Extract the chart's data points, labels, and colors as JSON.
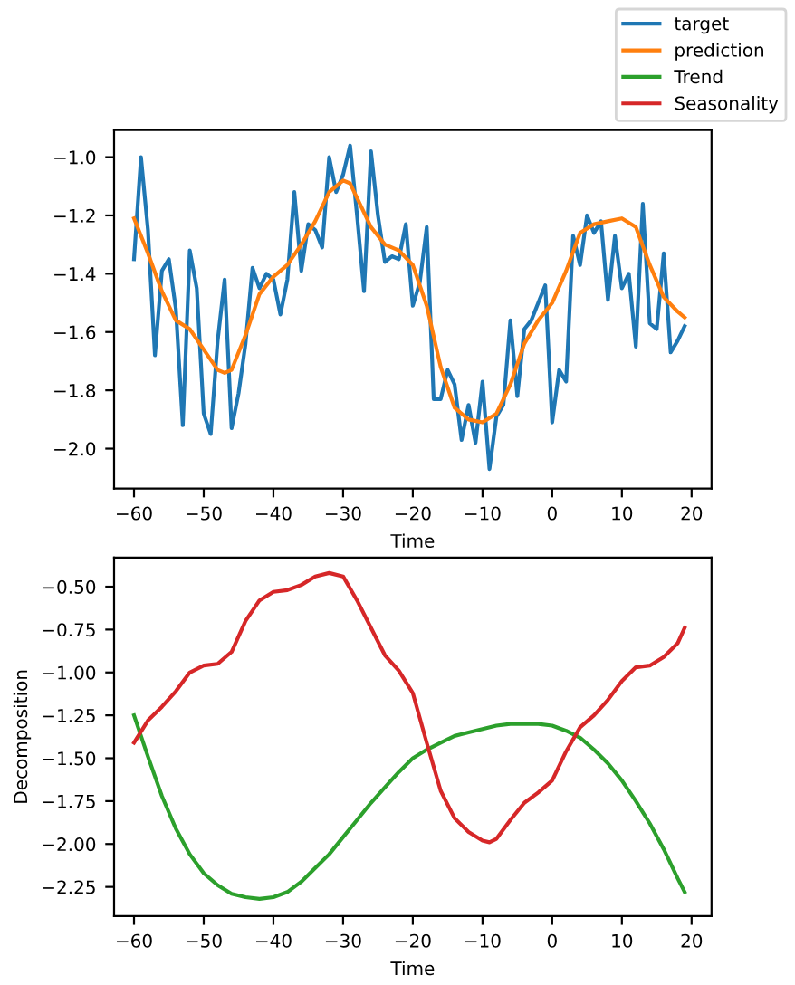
{
  "chart_data": [
    {
      "type": "line",
      "xlabel": "Time",
      "legend": "top right",
      "grid": false,
      "xlim": [
        -62.86,
        22.86
      ],
      "ylim": [
        -2.137,
        -0.907
      ],
      "xticks": [
        {
          "value": -60,
          "label": "−60"
        },
        {
          "value": -50,
          "label": "−50"
        },
        {
          "value": -40,
          "label": "−40"
        },
        {
          "value": -30,
          "label": "−30"
        },
        {
          "value": -20,
          "label": "−20"
        },
        {
          "value": -10,
          "label": "−10"
        },
        0,
        10,
        20
      ],
      "yticks": [
        {
          "value": -2.0,
          "label": "−2.0"
        },
        {
          "value": -1.8,
          "label": "−1.8"
        },
        {
          "value": -1.6,
          "label": "−1.6"
        },
        {
          "value": -1.4,
          "label": "−1.4"
        },
        {
          "value": -1.2,
          "label": "−1.2"
        },
        {
          "value": -1.0,
          "label": "−1.0"
        }
      ],
      "series": [
        {
          "name": "target",
          "color": "#1f77b4",
          "x": [
            -60,
            -59,
            -58,
            -57,
            -56,
            -55,
            -54,
            -53,
            -52,
            -51,
            -50,
            -49,
            -48,
            -47,
            -46,
            -45,
            -44,
            -43,
            -42,
            -41,
            -40,
            -39,
            -38,
            -37,
            -36,
            -35,
            -34,
            -33,
            -32,
            -31,
            -30,
            -29,
            -28,
            -27,
            -26,
            -25,
            -24,
            -23,
            -22,
            -21,
            -20,
            -19,
            -18,
            -17,
            -16,
            -15,
            -14,
            -13,
            -12,
            -11,
            -10,
            -9,
            -8,
            -7,
            -6,
            -5,
            -4,
            -3,
            -2,
            -1,
            0,
            1,
            2,
            3,
            4,
            5,
            6,
            7,
            8,
            9,
            10,
            11,
            12,
            13,
            14,
            15,
            16,
            17,
            18,
            19
          ],
          "values": [
            -1.35,
            -1.0,
            -1.25,
            -1.68,
            -1.39,
            -1.35,
            -1.52,
            -1.92,
            -1.32,
            -1.45,
            -1.88,
            -1.95,
            -1.63,
            -1.42,
            -1.93,
            -1.81,
            -1.64,
            -1.38,
            -1.45,
            -1.4,
            -1.42,
            -1.54,
            -1.42,
            -1.12,
            -1.39,
            -1.23,
            -1.25,
            -1.31,
            -1.0,
            -1.12,
            -1.06,
            -0.96,
            -1.2,
            -1.46,
            -0.98,
            -1.2,
            -1.36,
            -1.34,
            -1.35,
            -1.23,
            -1.51,
            -1.43,
            -1.24,
            -1.83,
            -1.83,
            -1.73,
            -1.78,
            -1.97,
            -1.85,
            -1.98,
            -1.77,
            -2.07,
            -1.89,
            -1.85,
            -1.56,
            -1.82,
            -1.59,
            -1.56,
            -1.5,
            -1.44,
            -1.91,
            -1.73,
            -1.77,
            -1.27,
            -1.37,
            -1.2,
            -1.26,
            -1.22,
            -1.49,
            -1.27,
            -1.45,
            -1.4,
            -1.65,
            -1.16,
            -1.57,
            -1.59,
            -1.33,
            -1.67,
            -1.63,
            -1.58
          ]
        },
        {
          "name": "prediction",
          "color": "#ff7f0e",
          "x": [
            -60,
            -58,
            -56,
            -54,
            -52,
            -50,
            -48,
            -47,
            -46,
            -44,
            -42,
            -40,
            -38,
            -36,
            -34,
            -32,
            -30,
            -29,
            -28,
            -26,
            -24,
            -22,
            -20,
            -18,
            -16,
            -14,
            -12,
            -10,
            -8,
            -6,
            -4,
            -2,
            0,
            2,
            4,
            6,
            8,
            10,
            12,
            14,
            16,
            18,
            19
          ],
          "values": [
            -1.21,
            -1.33,
            -1.46,
            -1.56,
            -1.59,
            -1.66,
            -1.73,
            -1.74,
            -1.73,
            -1.61,
            -1.47,
            -1.41,
            -1.37,
            -1.3,
            -1.22,
            -1.12,
            -1.08,
            -1.09,
            -1.14,
            -1.24,
            -1.3,
            -1.32,
            -1.37,
            -1.51,
            -1.72,
            -1.86,
            -1.9,
            -1.91,
            -1.88,
            -1.78,
            -1.64,
            -1.56,
            -1.5,
            -1.39,
            -1.26,
            -1.23,
            -1.22,
            -1.21,
            -1.24,
            -1.37,
            -1.48,
            -1.53,
            -1.55
          ]
        }
      ]
    },
    {
      "type": "line",
      "xlabel": "Time",
      "ylabel": "Decomposition",
      "legend": "top right",
      "grid": false,
      "xlim": [
        -62.86,
        22.86
      ],
      "ylim": [
        -2.42,
        -0.33
      ],
      "xticks": [
        {
          "value": -60,
          "label": "−60"
        },
        {
          "value": -50,
          "label": "−50"
        },
        {
          "value": -40,
          "label": "−40"
        },
        {
          "value": -30,
          "label": "−30"
        },
        {
          "value": -20,
          "label": "−20"
        },
        {
          "value": -10,
          "label": "−10"
        },
        0,
        10,
        20
      ],
      "yticks": [
        {
          "value": -2.25,
          "label": "−2.25"
        },
        {
          "value": -2.0,
          "label": "−2.00"
        },
        {
          "value": -1.75,
          "label": "−1.75"
        },
        {
          "value": -1.5,
          "label": "−1.50"
        },
        {
          "value": -1.25,
          "label": "−1.25"
        },
        {
          "value": -1.0,
          "label": "−1.00"
        },
        {
          "value": -0.75,
          "label": "−0.75"
        },
        {
          "value": -0.5,
          "label": "−0.50"
        }
      ],
      "series": [
        {
          "name": "Trend",
          "color": "#2ca02c",
          "x": [
            -60,
            -58,
            -56,
            -54,
            -52,
            -50,
            -48,
            -46,
            -44,
            -42,
            -40,
            -38,
            -36,
            -34,
            -32,
            -30,
            -28,
            -26,
            -24,
            -22,
            -20,
            -18,
            -16,
            -14,
            -12,
            -10,
            -8,
            -6,
            -4,
            -2,
            0,
            2,
            4,
            6,
            8,
            10,
            12,
            14,
            16,
            18,
            19
          ],
          "values": [
            -1.25,
            -1.49,
            -1.72,
            -1.91,
            -2.06,
            -2.17,
            -2.24,
            -2.29,
            -2.31,
            -2.32,
            -2.31,
            -2.28,
            -2.22,
            -2.14,
            -2.06,
            -1.96,
            -1.86,
            -1.76,
            -1.67,
            -1.58,
            -1.5,
            -1.45,
            -1.41,
            -1.37,
            -1.35,
            -1.33,
            -1.31,
            -1.3,
            -1.3,
            -1.3,
            -1.31,
            -1.34,
            -1.38,
            -1.45,
            -1.53,
            -1.63,
            -1.75,
            -1.88,
            -2.03,
            -2.2,
            -2.28
          ]
        },
        {
          "name": "Seasonality",
          "color": "#d62728",
          "x": [
            -60,
            -58,
            -56,
            -54,
            -52,
            -50,
            -48,
            -46,
            -44,
            -42,
            -40,
            -38,
            -36,
            -34,
            -32,
            -30,
            -28,
            -26,
            -24,
            -22,
            -20,
            -18,
            -16,
            -14,
            -12,
            -10,
            -9,
            -8,
            -6,
            -4,
            -2,
            0,
            2,
            4,
            6,
            8,
            10,
            12,
            14,
            16,
            18,
            19
          ],
          "values": [
            -1.41,
            -1.28,
            -1.2,
            -1.11,
            -1.0,
            -0.96,
            -0.95,
            -0.88,
            -0.7,
            -0.58,
            -0.53,
            -0.52,
            -0.49,
            -0.44,
            -0.42,
            -0.44,
            -0.58,
            -0.74,
            -0.9,
            -0.99,
            -1.12,
            -1.41,
            -1.69,
            -1.85,
            -1.93,
            -1.98,
            -1.99,
            -1.97,
            -1.86,
            -1.76,
            -1.7,
            -1.63,
            -1.46,
            -1.32,
            -1.25,
            -1.16,
            -1.05,
            -0.97,
            -0.96,
            -0.91,
            -0.83,
            -0.74
          ]
        }
      ]
    }
  ]
}
